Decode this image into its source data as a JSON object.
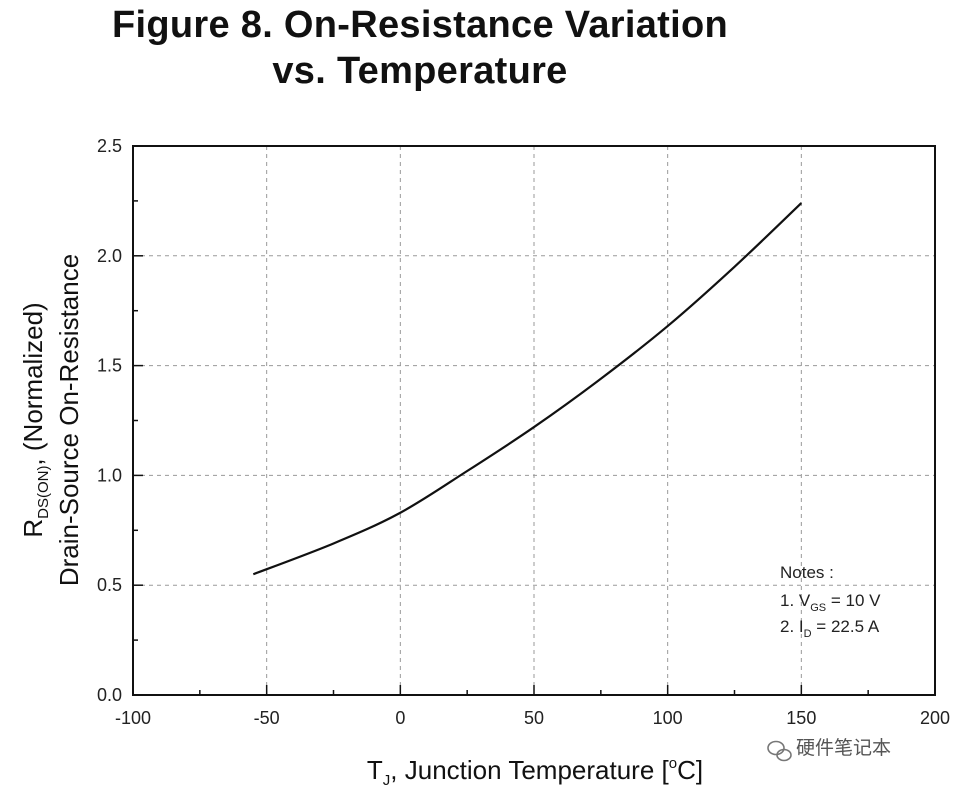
{
  "title_line1": "Figure 8. On-Resistance Variation",
  "title_line2": "vs. Temperature",
  "watermark": "硬件笔记本",
  "chart_data": {
    "type": "line",
    "xlabel_main": "T",
    "xlabel_sub": "J",
    "xlabel_rest": ", Junction Temperature [",
    "xlabel_unit_sup": "o",
    "xlabel_unit_end": "C]",
    "ylabel_line1_main": "R",
    "ylabel_line1_sub": "DS(ON)",
    "ylabel_line1_rest": ", (Normalized)",
    "ylabel_line2": "Drain-Source On-Resistance",
    "xlim": [
      -100,
      200
    ],
    "ylim": [
      0.0,
      2.5
    ],
    "xticks": [
      "-100",
      "-50",
      "0",
      "50",
      "100",
      "150",
      "200"
    ],
    "yticks": [
      "0.0",
      "0.5",
      "1.0",
      "1.5",
      "2.0",
      "2.5"
    ],
    "grid": true,
    "notes": {
      "header": "Notes :",
      "line1_pre": "1. V",
      "line1_sub": "GS",
      "line1_post": " = 10 V",
      "line2_pre": "2. I",
      "line2_sub": "D",
      "line2_post": " = 22.5 A"
    },
    "series": [
      {
        "x": [
          -55,
          -25,
          0,
          25,
          50,
          75,
          100,
          125,
          150
        ],
        "y": [
          0.55,
          0.69,
          0.83,
          1.02,
          1.22,
          1.44,
          1.68,
          1.95,
          2.24
        ]
      }
    ]
  }
}
